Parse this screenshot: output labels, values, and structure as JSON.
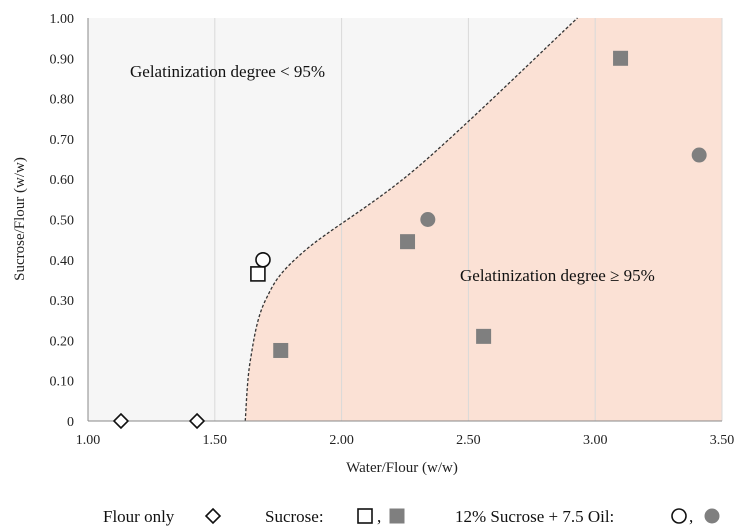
{
  "chart_data": {
    "type": "scatter",
    "xlabel": "Water/Flour (w/w)",
    "ylabel": "Sucrose/Flour (w/w)",
    "xlim": [
      1.0,
      3.5
    ],
    "ylim": [
      0,
      1.0
    ],
    "x_ticks": [
      "1.00",
      "1.50",
      "2.00",
      "2.50",
      "3.00",
      "3.50"
    ],
    "y_ticks": [
      "0",
      "0.10",
      "0.20",
      "0.30",
      "0.40",
      "0.50",
      "0.60",
      "0.70",
      "0.80",
      "0.90",
      "1.00"
    ],
    "grid": "vertical",
    "regions": [
      {
        "label": "Gelatinization degree < 95%",
        "color": "#f6f6f6"
      },
      {
        "label": "Gelatinization degree ≥ 95%",
        "color": "#fbe1d5"
      }
    ],
    "boundary": {
      "style": "dashed",
      "points": [
        [
          1.62,
          0.0
        ],
        [
          1.64,
          0.15
        ],
        [
          1.7,
          0.3
        ],
        [
          1.85,
          0.42
        ],
        [
          2.3,
          0.63
        ],
        [
          2.93,
          1.0
        ]
      ]
    },
    "series": [
      {
        "name": "Flour only",
        "marker": "diamond-open",
        "color": "#111111",
        "points": [
          {
            "x": 1.13,
            "y": 0.0
          },
          {
            "x": 1.43,
            "y": 0.0
          }
        ]
      },
      {
        "name": "Sucrose",
        "marker": "square-open",
        "color": "#111111",
        "points": [
          {
            "x": 1.67,
            "y": 0.365
          }
        ]
      },
      {
        "name": "Sucrose",
        "marker": "square-filled",
        "color": "#7f7f7f",
        "points": [
          {
            "x": 1.76,
            "y": 0.175
          },
          {
            "x": 2.26,
            "y": 0.445
          },
          {
            "x": 2.56,
            "y": 0.21
          },
          {
            "x": 3.1,
            "y": 0.9
          }
        ]
      },
      {
        "name": "12% Sucrose + 7.5 Oil",
        "marker": "circle-open",
        "color": "#111111",
        "points": [
          {
            "x": 1.69,
            "y": 0.4
          }
        ]
      },
      {
        "name": "12% Sucrose + 7.5 Oil",
        "marker": "circle-filled",
        "color": "#7f7f7f",
        "points": [
          {
            "x": 2.34,
            "y": 0.5
          },
          {
            "x": 3.41,
            "y": 0.66
          }
        ]
      }
    ],
    "legend": {
      "placement": "bottom",
      "entries": [
        {
          "label": "Flour only",
          "markers": [
            "diamond-open"
          ]
        },
        {
          "label": "Sucrose:",
          "markers": [
            "square-open",
            "square-filled"
          ],
          "separator": ","
        },
        {
          "label": "12% Sucrose + 7.5 Oil:",
          "markers": [
            "circle-open",
            "circle-filled"
          ],
          "separator": ","
        }
      ]
    }
  }
}
